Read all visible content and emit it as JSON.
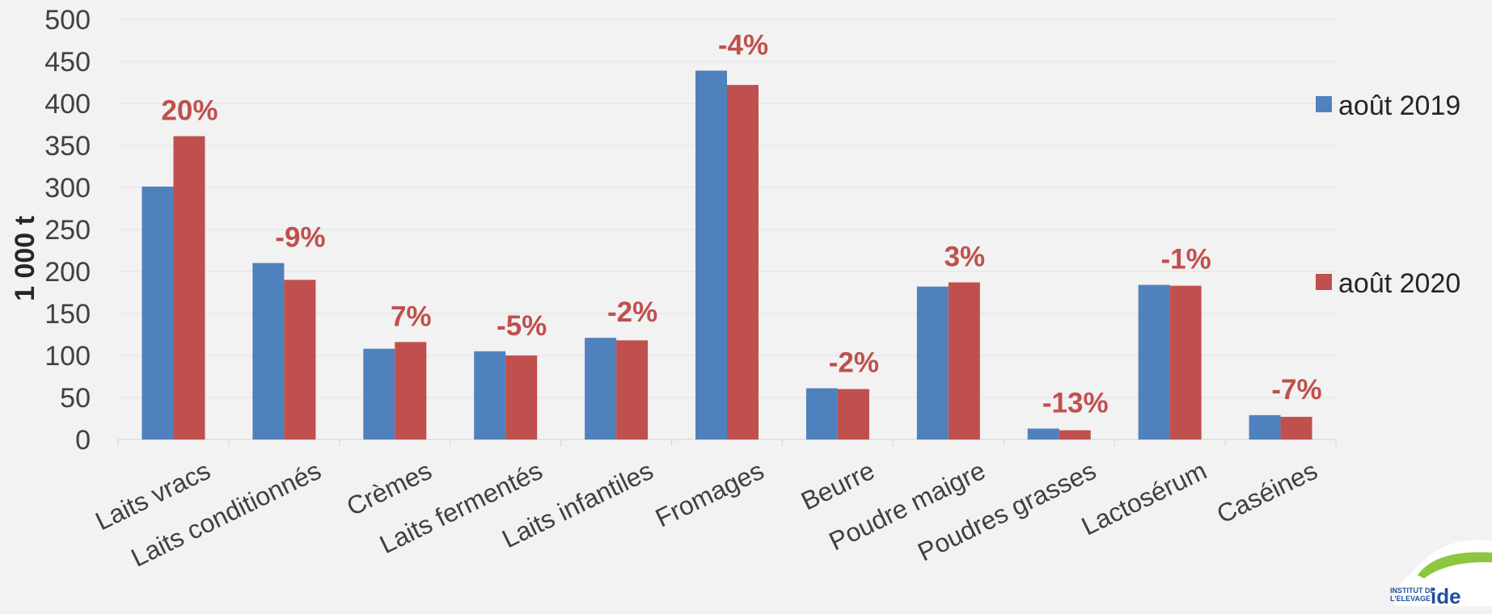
{
  "chart_data": {
    "type": "bar",
    "title": "",
    "xlabel": "",
    "ylabel": "1 000 t",
    "ylim": [
      0,
      500
    ],
    "yticks": [
      0,
      50,
      100,
      150,
      200,
      250,
      300,
      350,
      400,
      450,
      500
    ],
    "grid": true,
    "legend_position": "right",
    "categories": [
      "Laits vracs",
      "Laits conditionnés",
      "Crèmes",
      "Laits fermentés",
      "Laits infantiles",
      "Fromages",
      "Beurre",
      "Poudre maigre",
      "Poudres grasses",
      "Lactosérum",
      "Caséines"
    ],
    "series": [
      {
        "name": "août 2019",
        "color": "#4f81bd",
        "values": [
          301,
          210,
          108,
          105,
          121,
          439,
          61,
          182,
          13,
          184,
          29
        ]
      },
      {
        "name": "août 2020",
        "color": "#c0504d",
        "values": [
          361,
          190,
          116,
          100,
          118,
          422,
          60,
          187,
          11,
          183,
          27
        ]
      }
    ],
    "annotations": [
      "20%",
      "-9%",
      "7%",
      "-5%",
      "-2%",
      "-4%",
      "-2%",
      "3%",
      "-13%",
      "-1%",
      "-7%"
    ],
    "annotation_color": "#c0504d"
  },
  "logo": {
    "line1": "INSTITUT DE",
    "line2": "L'ELEVAGE",
    "brand": "ide"
  }
}
